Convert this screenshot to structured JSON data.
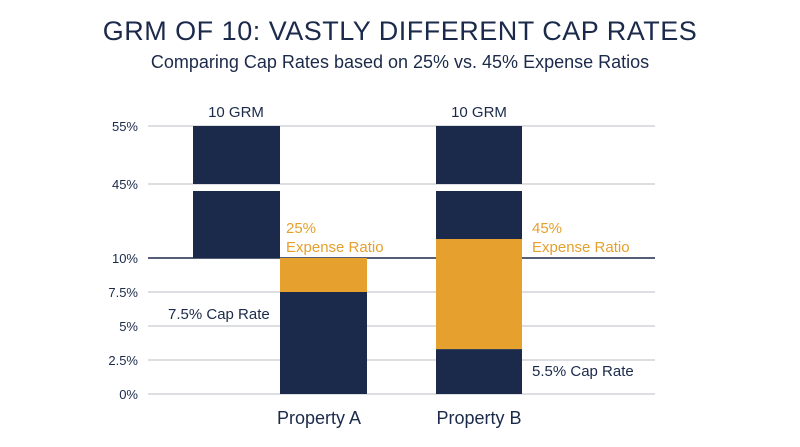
{
  "title": "GRM OF 10: VASTLY DIFFERENT CAP RATES",
  "subtitle": "Comparing Cap Rates based on 25% vs. 45% Expense Ratios",
  "colors": {
    "navy": "#1b2a4a",
    "gold": "#e5a02e",
    "grid": "#b9bcc4"
  },
  "chart_data": {
    "type": "bar",
    "title": "GRM OF 10: VASTLY DIFFERENT CAP RATES",
    "subtitle": "Comparing Cap Rates based on 25% vs. 45% Expense Ratios",
    "y_ticks": [
      "55%",
      "45%",
      "10%",
      "7.5%",
      "5%",
      "2.5%",
      "0%"
    ],
    "y_tick_values": [
      55,
      45,
      10,
      7.5,
      5,
      2.5,
      0
    ],
    "y_axis_note": "broken axis between 10% and 45%",
    "categories": [
      "Property A",
      "Property B"
    ],
    "series": [
      {
        "name": "10 GRM",
        "values": [
          55,
          55
        ]
      },
      {
        "name": "Expense Ratio",
        "values": [
          25,
          45
        ]
      },
      {
        "name": "Cap Rate",
        "values": [
          7.5,
          5.5
        ]
      }
    ],
    "annotations": {
      "grm_label": "10 GRM",
      "a_expense_pct": "25%",
      "b_expense_pct": "45%",
      "expense_text": "Expense Ratio",
      "a_cap_label": "7.5% Cap Rate",
      "b_cap_label": "5.5% Cap Rate"
    },
    "grid": true
  }
}
